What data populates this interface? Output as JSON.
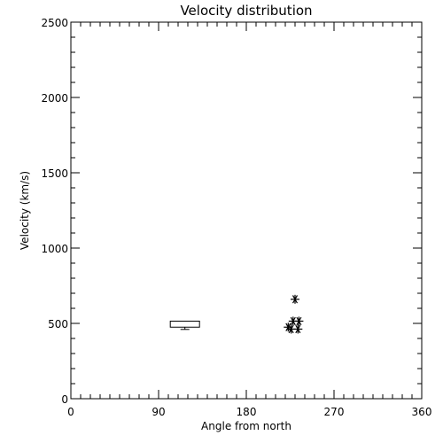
{
  "chart_data": {
    "type": "scatter",
    "title": "Velocity distribution",
    "xlabel": "Angle from north",
    "ylabel": "Velocity (km/s)",
    "xlim": [
      0,
      360
    ],
    "ylim": [
      0,
      2500
    ],
    "x_ticks": [
      0,
      90,
      180,
      270,
      360
    ],
    "y_ticks": [
      0,
      500,
      1000,
      1500,
      2000,
      2500
    ],
    "x_minor_step": 10,
    "y_minor_step": 100,
    "grid": false,
    "box": {
      "x_from": 102,
      "x_to": 132,
      "q1": 475,
      "q3": 515,
      "whisker_low": 460
    },
    "points": [
      {
        "x": 230,
        "y": 660
      },
      {
        "x": 228,
        "y": 515
      },
      {
        "x": 234,
        "y": 515
      },
      {
        "x": 223,
        "y": 475
      },
      {
        "x": 226,
        "y": 462
      },
      {
        "x": 233,
        "y": 462
      }
    ],
    "marker": "asterisk"
  }
}
